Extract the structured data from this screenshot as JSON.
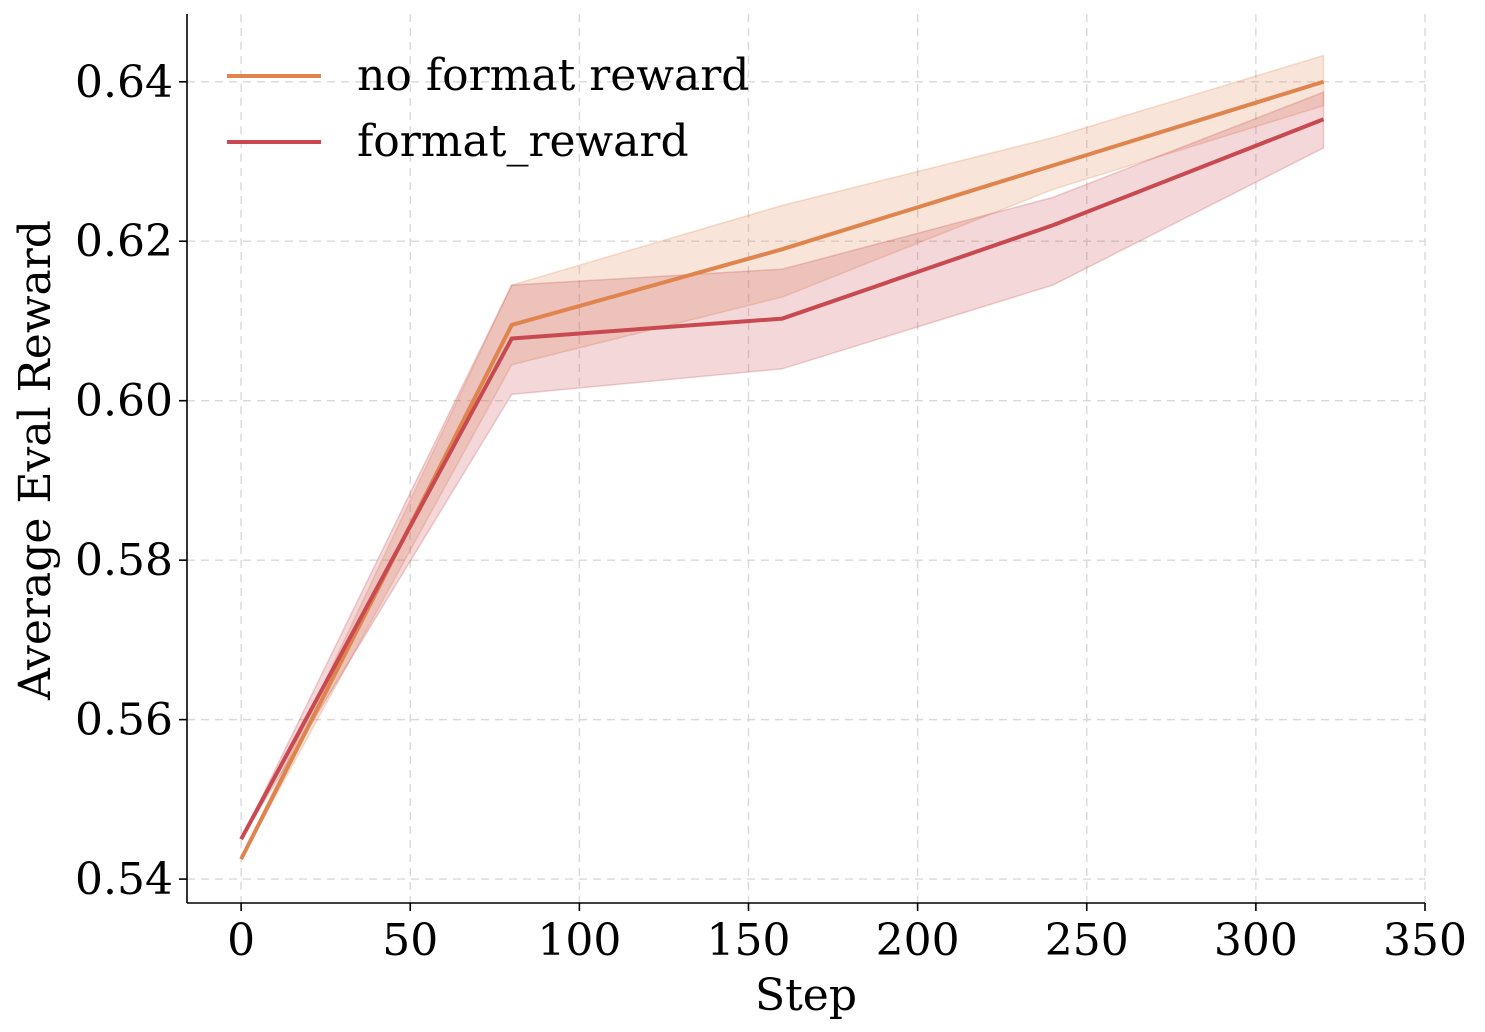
{
  "chart_data": {
    "type": "line",
    "xlabel": "Step",
    "ylabel": "Average Eval Reward",
    "xlim": [
      -16,
      350
    ],
    "ylim": [
      0.537,
      0.6485
    ],
    "xticks": [
      0,
      50,
      100,
      150,
      200,
      250,
      300,
      350
    ],
    "xtick_labels": [
      "0",
      "50",
      "100",
      "150",
      "200",
      "250",
      "300",
      "350"
    ],
    "yticks": [
      0.54,
      0.56,
      0.58,
      0.6,
      0.62,
      0.64
    ],
    "ytick_labels": [
      "0.54",
      "0.56",
      "0.58",
      "0.60",
      "0.62",
      "0.64"
    ],
    "grid": true,
    "legend_position": "top-left",
    "x": [
      0,
      80,
      160,
      240,
      320
    ],
    "series": [
      {
        "name": "no format reward",
        "color": "#E0844E",
        "values": [
          0.5425,
          0.6095,
          0.619,
          0.6295,
          0.64
        ],
        "lower": [
          0.5425,
          0.6045,
          0.613,
          0.6265,
          0.637
        ],
        "upper": [
          0.5425,
          0.6145,
          0.6245,
          0.633,
          0.6433
        ]
      },
      {
        "name": "format_reward",
        "color": "#C84A50",
        "values": [
          0.545,
          0.6078,
          0.6103,
          0.622,
          0.6353
        ],
        "lower": [
          0.545,
          0.6008,
          0.604,
          0.6145,
          0.6317
        ],
        "upper": [
          0.545,
          0.6145,
          0.6165,
          0.6255,
          0.6387
        ]
      }
    ]
  }
}
